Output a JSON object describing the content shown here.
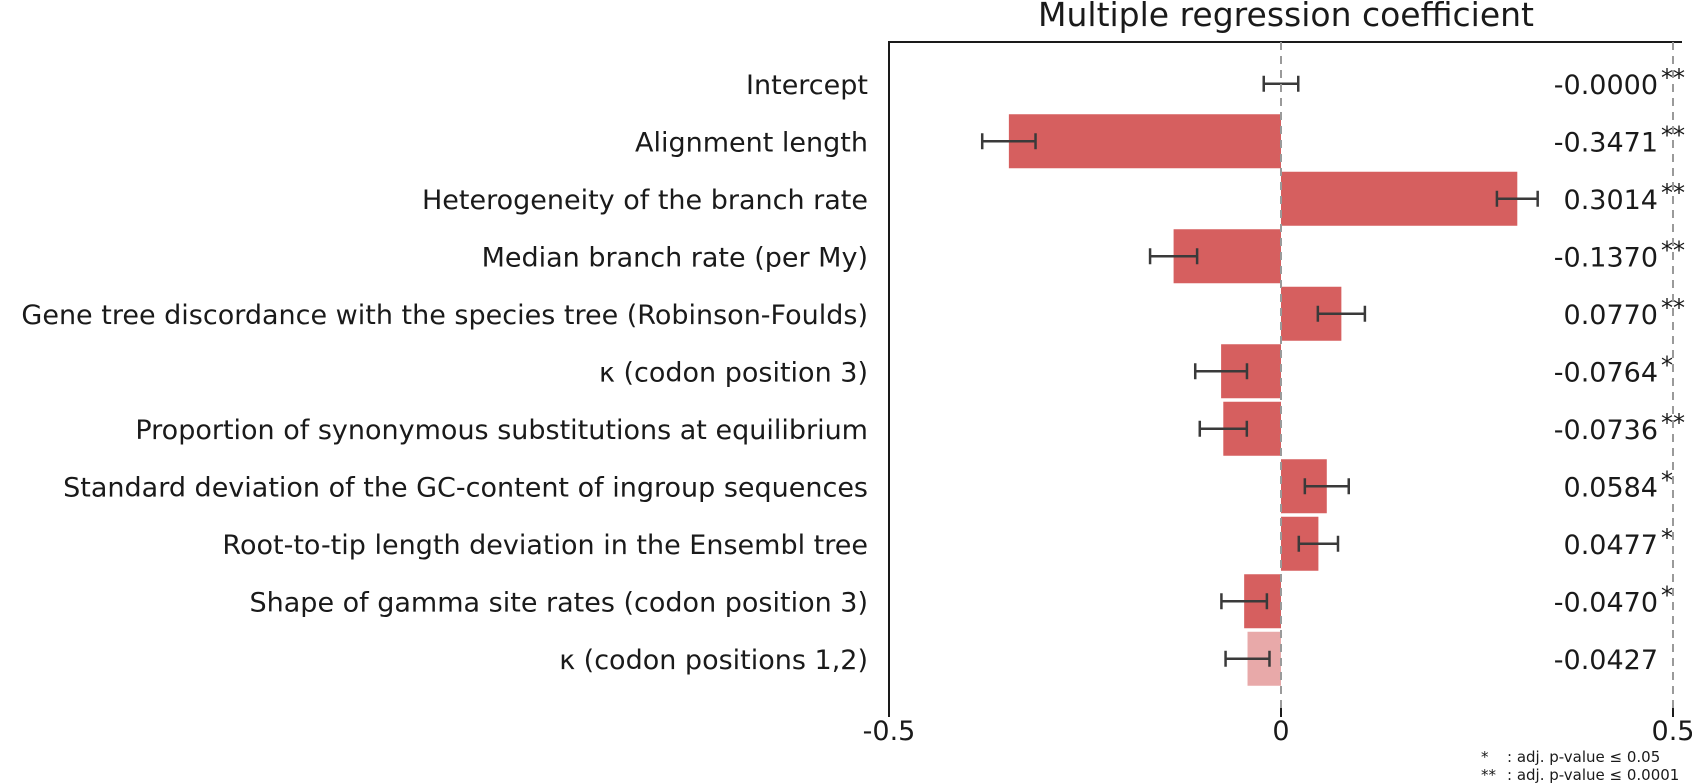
{
  "chart_data": {
    "type": "bar",
    "orientation": "horizontal",
    "title": "Multiple regression coefficient",
    "xlim": [
      -0.5,
      0.5
    ],
    "xticks": [
      "-0.5",
      "0",
      "0.5"
    ],
    "zero_line": "dashed",
    "categories": [
      "Intercept",
      "Alignment length",
      "Heterogeneity of the branch rate",
      "Median branch rate (per My)",
      "Gene tree discordance with the species tree (Robinson-Foulds)",
      "κ (codon position 3)",
      "Proportion of synonymous substitutions at equilibrium",
      "Standard deviation of the GC-content of ingroup sequences",
      "Root-to-tip length deviation in the Ensembl tree",
      "Shape of gamma site rates (codon position 3)",
      "κ (codon positions 1,2)"
    ],
    "values": [
      -0.0,
      -0.3471,
      0.3014,
      -0.137,
      0.077,
      -0.0764,
      -0.0736,
      0.0584,
      0.0477,
      -0.047,
      -0.0427
    ],
    "value_labels": [
      "-0.0000",
      "-0.3471",
      "0.3014",
      "-0.1370",
      "0.0770",
      "-0.0764",
      "-0.0736",
      "0.0584",
      "0.0477",
      "-0.0470",
      "-0.0427"
    ],
    "errors": [
      0.022,
      0.034,
      0.026,
      0.03,
      0.03,
      0.033,
      0.03,
      0.028,
      0.025,
      0.029,
      0.028
    ],
    "significance": [
      "**",
      "**",
      "**",
      "**",
      "**",
      "*",
      "**",
      "*",
      "*",
      "*",
      ""
    ],
    "bar_color": "#d65f5f",
    "bar_color_nonsignificant": "#e8a9a9",
    "errorbar_color": "#3a3a3a",
    "legend": [
      {
        "symbol": "*",
        "text": ": adj. p-value ≤ 0.05"
      },
      {
        "symbol": "**",
        "text": ": adj. p-value ≤ 0.0001"
      }
    ]
  }
}
